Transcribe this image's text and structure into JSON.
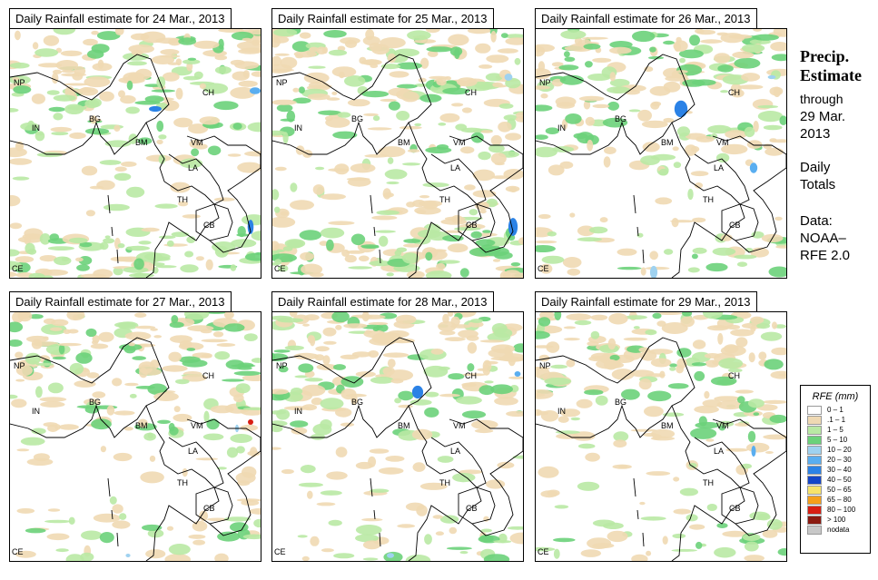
{
  "panels": [
    {
      "title": "Daily Rainfall estimate for  24 Mar., 2013"
    },
    {
      "title": "Daily Rainfall estimate for  25 Mar., 2013"
    },
    {
      "title": "Daily Rainfall estimate for  26 Mar., 2013"
    },
    {
      "title": "Daily Rainfall estimate for  27 Mar., 2013"
    },
    {
      "title": "Daily Rainfall estimate for  28 Mar., 2013"
    },
    {
      "title": "Daily Rainfall estimate for  29 Mar., 2013"
    }
  ],
  "country_labels": [
    "NP",
    "CH",
    "IN",
    "BG",
    "BM",
    "VM",
    "LA",
    "TH",
    "CB",
    "CE"
  ],
  "side": {
    "title_line1": "Precip.",
    "title_line2": "Estimate",
    "through": "through",
    "date_line1": "29 Mar.",
    "date_line2": "2013",
    "daily1": "Daily",
    "daily2": "Totals",
    "data1": "Data:",
    "data2": "NOAA–",
    "data3": "RFE 2.0"
  },
  "legend": {
    "title": "RFE (mm)",
    "items": [
      {
        "label": "0 – 1",
        "color": "#ffffff"
      },
      {
        "label": ".1 – 1",
        "color": "#efd9b3"
      },
      {
        "label": "1 – 5",
        "color": "#b9e9a4"
      },
      {
        "label": "5 – 10",
        "color": "#6bd27a"
      },
      {
        "label": "10 – 20",
        "color": "#9fd2f0"
      },
      {
        "label": "20 – 30",
        "color": "#5aaef0"
      },
      {
        "label": "30 – 40",
        "color": "#2b82e6"
      },
      {
        "label": "40 – 50",
        "color": "#1446c8"
      },
      {
        "label": "50 – 65",
        "color": "#f7e36a"
      },
      {
        "label": "65 – 80",
        "color": "#f59f1a"
      },
      {
        "label": "80 – 100",
        "color": "#d81e12"
      },
      {
        "label": "> 100",
        "color": "#8b1a10"
      },
      {
        "label": "nodata",
        "color": "#c8c8c8"
      }
    ]
  }
}
